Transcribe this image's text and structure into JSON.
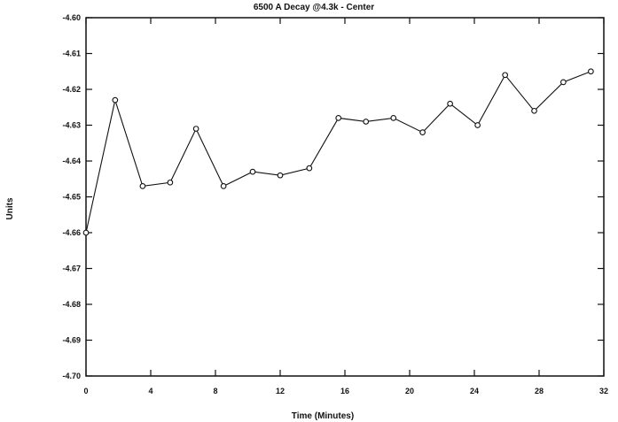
{
  "chart_data": {
    "type": "line",
    "title": "6500 A Decay @4.3k - Center",
    "xlabel": "Time (Minutes)",
    "ylabel": "Units",
    "xlim": [
      0,
      32
    ],
    "ylim": [
      -4.7,
      -4.6
    ],
    "x_ticks": [
      "0",
      "4",
      "8",
      "12",
      "16",
      "20",
      "24",
      "28",
      "32"
    ],
    "y_ticks": [
      "-4.60",
      "-4.61",
      "-4.62",
      "-4.63",
      "-4.64",
      "-4.65",
      "-4.66",
      "-4.67",
      "-4.68",
      "-4.69",
      "-4.70"
    ],
    "grid": false,
    "series": [
      {
        "x": [
          0,
          1.8,
          3.5,
          5.2,
          6.8,
          8.5,
          10.3,
          12.0,
          13.8,
          15.6,
          17.3,
          19.0,
          20.8,
          22.5,
          24.2,
          25.9,
          27.7,
          29.5,
          31.2
        ],
        "y": [
          -4.66,
          -4.623,
          -4.647,
          -4.646,
          -4.631,
          -4.647,
          -4.643,
          -4.644,
          -4.642,
          -4.628,
          -4.629,
          -4.628,
          -4.632,
          -4.624,
          -4.63,
          -4.616,
          -4.626,
          -4.618,
          -4.615
        ]
      }
    ]
  }
}
